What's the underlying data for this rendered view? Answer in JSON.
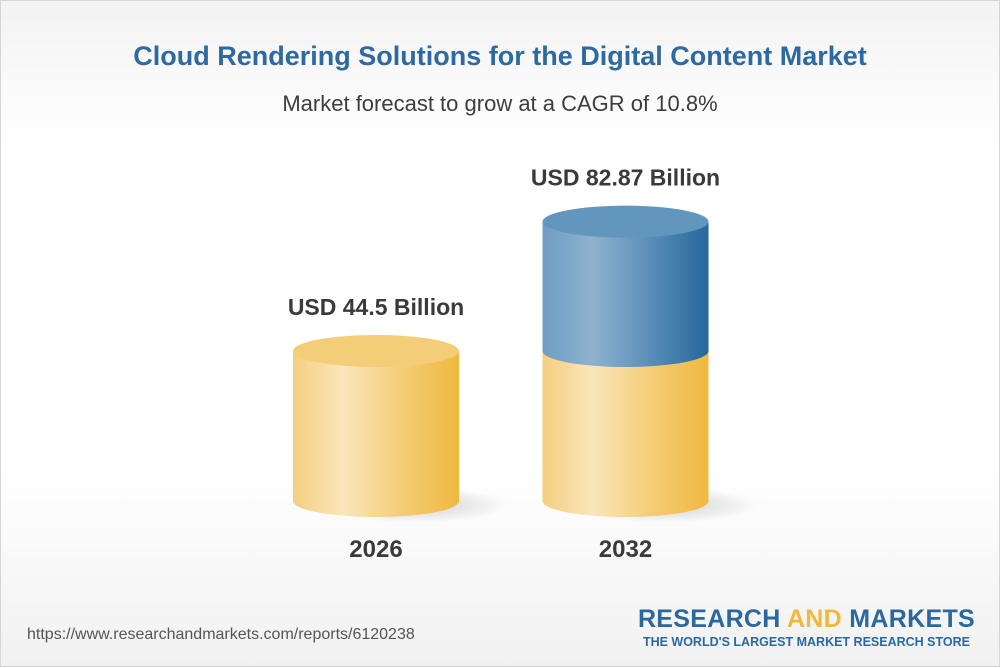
{
  "title": "Cloud Rendering Solutions for the Digital Content Market",
  "subtitle": "Market forecast to grow at a CAGR of 10.8%",
  "chart_data": {
    "type": "bar",
    "style": "3d-cylinder",
    "categories": [
      "2026",
      "2032"
    ],
    "values": [
      44.5,
      82.87
    ],
    "data_labels": [
      "USD 44.5 Billion",
      "USD 82.87 Billion"
    ],
    "units": "USD Billion",
    "cagr": "10.8%",
    "colors": {
      "base": "#f0b93b",
      "growth": "#2b68a0"
    },
    "grid": false,
    "legend": "none"
  },
  "footer": {
    "url": "https://www.researchandmarkets.com/reports/6120238",
    "logo_part1": "RESEARCH ",
    "logo_part2": "AND",
    "logo_part3": " MARKETS",
    "logo_tagline": "THE WORLD'S LARGEST MARKET RESEARCH STORE"
  }
}
